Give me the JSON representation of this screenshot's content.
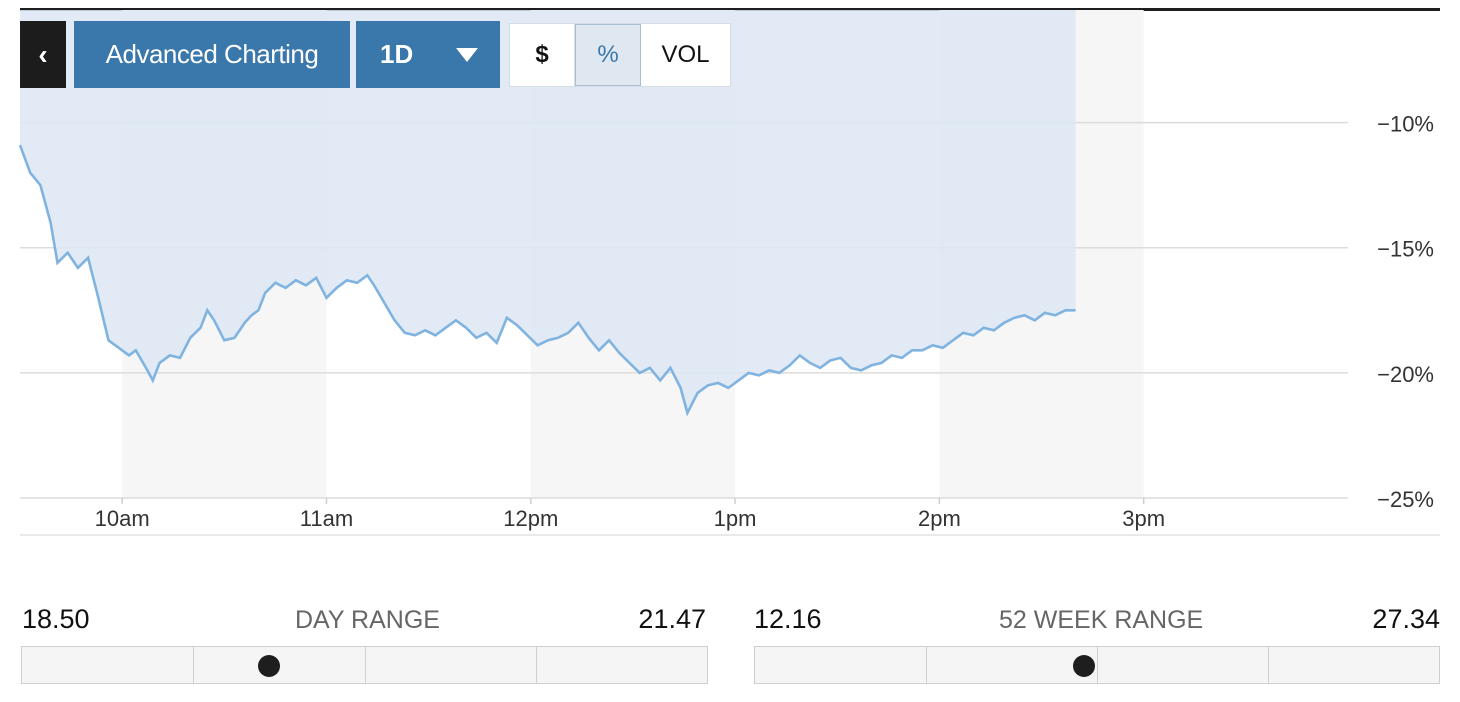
{
  "toolbar": {
    "back_icon": "chevron-left-icon",
    "back_glyph": "‹",
    "advanced_label": "Advanced Charting",
    "period_label": "1D",
    "dropdown_icon": "caret-down-icon",
    "unit_dollar": "$",
    "unit_percent": "%",
    "unit_volume": "VOL",
    "active_unit": "%"
  },
  "colors": {
    "accent": "#3a77aa",
    "line": "#80b3e0",
    "fill": "#dde8f3",
    "back_button": "#1c1c1c"
  },
  "chart_data": {
    "type": "line",
    "xlabel": "",
    "ylabel": "",
    "x_ticks": [
      "10am",
      "11am",
      "12pm",
      "1pm",
      "2pm",
      "3pm"
    ],
    "y_ticks": [
      "−10%",
      "−15%",
      "−20%",
      "−25%"
    ],
    "y_tick_values": [
      -10,
      -15,
      -20,
      -25
    ],
    "ylim": [
      -25,
      -5.5
    ],
    "xlim": [
      "9:30",
      "16:00"
    ],
    "grid": true,
    "series": [
      {
        "values": [
          [
            "9:30",
            -10.9
          ],
          [
            "9:33",
            -12.0
          ],
          [
            "9:36",
            -12.5
          ],
          [
            "9:39",
            -14.0
          ],
          [
            "9:41",
            -15.6
          ],
          [
            "9:44",
            -15.2
          ],
          [
            "9:47",
            -15.8
          ],
          [
            "9:50",
            -15.4
          ],
          [
            "9:53",
            -17.0
          ],
          [
            "9:56",
            -18.7
          ],
          [
            "9:59",
            -19.0
          ],
          [
            "10:02",
            -19.3
          ],
          [
            "10:04",
            -19.1
          ],
          [
            "10:07",
            -19.8
          ],
          [
            "10:09",
            -20.3
          ],
          [
            "10:11",
            -19.6
          ],
          [
            "10:14",
            -19.3
          ],
          [
            "10:17",
            -19.4
          ],
          [
            "10:20",
            -18.6
          ],
          [
            "10:23",
            -18.2
          ],
          [
            "10:25",
            -17.5
          ],
          [
            "10:27",
            -17.9
          ],
          [
            "10:30",
            -18.7
          ],
          [
            "10:33",
            -18.6
          ],
          [
            "10:36",
            -18.0
          ],
          [
            "10:38",
            -17.7
          ],
          [
            "10:40",
            -17.5
          ],
          [
            "10:42",
            -16.8
          ],
          [
            "10:45",
            -16.4
          ],
          [
            "10:48",
            -16.6
          ],
          [
            "10:51",
            -16.3
          ],
          [
            "10:54",
            -16.5
          ],
          [
            "10:57",
            -16.2
          ],
          [
            "11:00",
            -17.0
          ],
          [
            "11:03",
            -16.6
          ],
          [
            "11:06",
            -16.3
          ],
          [
            "11:09",
            -16.4
          ],
          [
            "11:12",
            -16.1
          ],
          [
            "11:14",
            -16.5
          ],
          [
            "11:17",
            -17.2
          ],
          [
            "11:20",
            -17.9
          ],
          [
            "11:23",
            -18.4
          ],
          [
            "11:26",
            -18.5
          ],
          [
            "11:29",
            -18.3
          ],
          [
            "11:32",
            -18.5
          ],
          [
            "11:35",
            -18.2
          ],
          [
            "11:38",
            -17.9
          ],
          [
            "11:41",
            -18.2
          ],
          [
            "11:44",
            -18.6
          ],
          [
            "11:47",
            -18.4
          ],
          [
            "11:50",
            -18.8
          ],
          [
            "11:53",
            -17.8
          ],
          [
            "11:56",
            -18.1
          ],
          [
            "11:59",
            -18.5
          ],
          [
            "12:02",
            -18.9
          ],
          [
            "12:05",
            -18.7
          ],
          [
            "12:08",
            -18.6
          ],
          [
            "12:11",
            -18.4
          ],
          [
            "12:14",
            -18.0
          ],
          [
            "12:17",
            -18.6
          ],
          [
            "12:20",
            -19.1
          ],
          [
            "12:23",
            -18.7
          ],
          [
            "12:26",
            -19.2
          ],
          [
            "12:29",
            -19.6
          ],
          [
            "12:32",
            -20.0
          ],
          [
            "12:35",
            -19.8
          ],
          [
            "12:38",
            -20.3
          ],
          [
            "12:41",
            -19.8
          ],
          [
            "12:44",
            -20.6
          ],
          [
            "12:46",
            -21.6
          ],
          [
            "12:49",
            -20.8
          ],
          [
            "12:52",
            -20.5
          ],
          [
            "12:55",
            -20.4
          ],
          [
            "12:58",
            -20.6
          ],
          [
            "13:01",
            -20.3
          ],
          [
            "13:04",
            -20.0
          ],
          [
            "13:07",
            -20.1
          ],
          [
            "13:10",
            -19.9
          ],
          [
            "13:13",
            -20.0
          ],
          [
            "13:16",
            -19.7
          ],
          [
            "13:19",
            -19.3
          ],
          [
            "13:22",
            -19.6
          ],
          [
            "13:25",
            -19.8
          ],
          [
            "13:28",
            -19.5
          ],
          [
            "13:31",
            -19.4
          ],
          [
            "13:34",
            -19.8
          ],
          [
            "13:37",
            -19.9
          ],
          [
            "13:40",
            -19.7
          ],
          [
            "13:43",
            -19.6
          ],
          [
            "13:46",
            -19.3
          ],
          [
            "13:49",
            -19.4
          ],
          [
            "13:52",
            -19.1
          ],
          [
            "13:55",
            -19.1
          ],
          [
            "13:58",
            -18.9
          ],
          [
            "14:01",
            -19.0
          ],
          [
            "14:04",
            -18.7
          ],
          [
            "14:07",
            -18.4
          ],
          [
            "14:10",
            -18.5
          ],
          [
            "14:13",
            -18.2
          ],
          [
            "14:16",
            -18.3
          ],
          [
            "14:19",
            -18.0
          ],
          [
            "14:22",
            -17.8
          ],
          [
            "14:25",
            -17.7
          ],
          [
            "14:28",
            -17.9
          ],
          [
            "14:31",
            -17.6
          ],
          [
            "14:34",
            -17.7
          ],
          [
            "14:37",
            -17.5
          ],
          [
            "14:40",
            -17.5
          ]
        ]
      }
    ]
  },
  "day_range": {
    "title": "DAY RANGE",
    "low": "18.50",
    "high": "21.47",
    "position": 0.36
  },
  "week52_range": {
    "title": "52 WEEK RANGE",
    "low": "12.16",
    "high": "27.34",
    "position": 0.48
  }
}
